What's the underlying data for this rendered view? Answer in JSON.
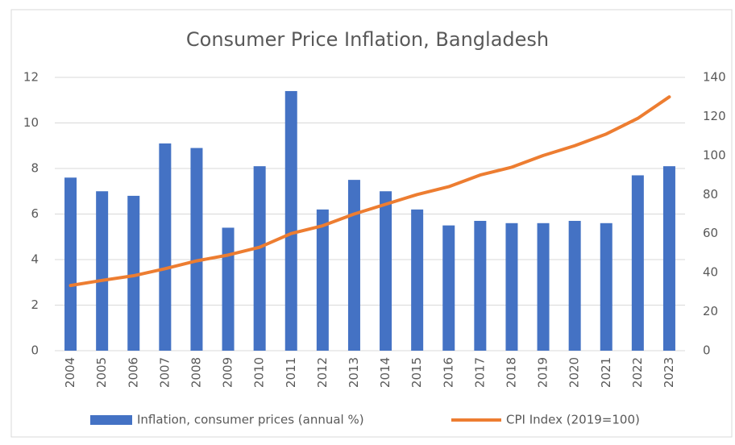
{
  "chart_data": {
    "type": "bar_line",
    "title": "Consumer Price Inflation, Bangladesh",
    "categories": [
      "2004",
      "2005",
      "2006",
      "2007",
      "2008",
      "2009",
      "2010",
      "2011",
      "2012",
      "2013",
      "2014",
      "2015",
      "2016",
      "2017",
      "2018",
      "2019",
      "2020",
      "2021",
      "2022",
      "2023"
    ],
    "series": [
      {
        "name": "Inflation, consumer prices (annual %)",
        "color": "#4472c4",
        "type": "bar",
        "values": [
          7.6,
          7.0,
          6.8,
          9.1,
          8.9,
          5.4,
          8.1,
          11.4,
          6.2,
          7.5,
          7.0,
          6.2,
          5.5,
          5.7,
          5.6,
          5.6,
          5.7,
          5.6,
          7.7,
          8.1
        ]
      },
      {
        "name": "CPI Index (2019=100)",
        "color": "#ed7d31",
        "type": "line",
        "axis": "y2",
        "values": [
          33.4,
          36,
          38.4,
          42,
          46,
          49,
          53,
          60,
          64,
          70,
          75,
          80,
          84,
          90,
          94,
          100,
          105,
          111,
          119,
          130
        ]
      }
    ],
    "ylim": [
      0,
      12
    ],
    "yticks": [
      0,
      2,
      4,
      6,
      8,
      10,
      12
    ],
    "y2lim": [
      0,
      140
    ],
    "y2ticks": [
      0,
      20,
      40,
      60,
      80,
      100,
      120,
      140
    ],
    "grid": true,
    "legend": "bottom"
  }
}
